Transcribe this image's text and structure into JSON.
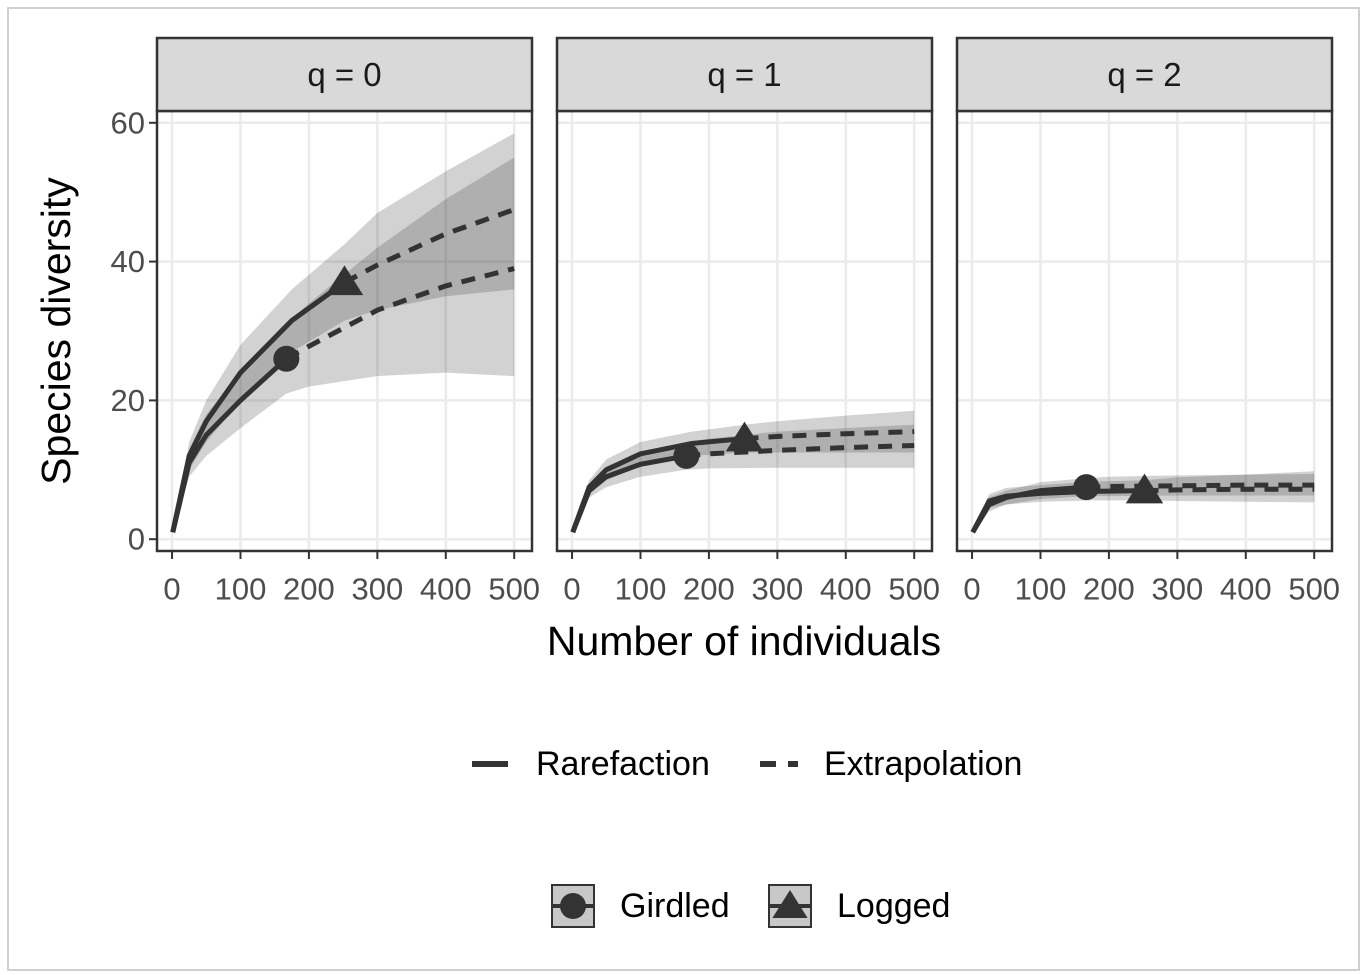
{
  "chart_data": {
    "type": "line",
    "xlabel": "Number of individuals",
    "ylabel": "Species diversity",
    "xlim": [
      -22,
      526
    ],
    "xticks": [
      0,
      100,
      200,
      300,
      400,
      500
    ],
    "ylim": [
      -1.7,
      61.7
    ],
    "yticks": [
      0,
      20,
      40,
      60
    ],
    "grid": true,
    "color": "#333333",
    "linetype_legend": [
      "Rarefaction",
      "Extrapolation"
    ],
    "groups": [
      {
        "name": "Girdled",
        "shape": "circle",
        "sample_size": 167
      },
      {
        "name": "Logged",
        "shape": "triangle",
        "sample_size": 252
      }
    ],
    "panels": [
      {
        "label": "q = 0",
        "series": [
          {
            "x": [
              1,
              25,
              50,
              100,
              167,
              200,
              300,
              400,
              500
            ],
            "values": [
              1,
              11,
              15,
              20,
              26,
              27.8,
              33,
              36.5,
              39
            ],
            "lower": [
              1,
              9,
              12,
              16,
              21,
              22,
              23.5,
              24,
              23.5
            ],
            "upper": [
              1,
              13,
              18,
              24,
              31,
              34,
              42,
              49,
              55
            ]
          },
          {
            "x": [
              1,
              25,
              50,
              100,
              175,
              252,
              300,
              400,
              500
            ],
            "values": [
              1,
              12,
              17,
              24,
              31.5,
              37,
              39.5,
              44,
              47.5
            ],
            "lower": [
              1,
              10,
              14,
              20,
              27,
              31.5,
              33,
              35,
              36
            ],
            "upper": [
              1,
              14,
              20,
              28,
              36,
              42.5,
              47,
              53,
              58.5
            ]
          }
        ]
      },
      {
        "label": "q = 1",
        "series": [
          {
            "x": [
              1,
              25,
              50,
              100,
              167,
              200,
              300,
              400,
              500
            ],
            "values": [
              1,
              7,
              9,
              10.8,
              12,
              12.3,
              12.8,
              13.2,
              13.5
            ],
            "lower": [
              1,
              6,
              7.5,
              9,
              10,
              10.2,
              10.3,
              10.3,
              10.3
            ],
            "upper": [
              1,
              8,
              10.5,
              12.5,
              14,
              14.5,
              15.5,
              16,
              16.5
            ]
          },
          {
            "x": [
              1,
              25,
              50,
              100,
              175,
              252,
              300,
              400,
              500
            ],
            "values": [
              1,
              7.5,
              10,
              12.3,
              13.8,
              14.5,
              14.8,
              15.2,
              15.5
            ],
            "lower": [
              1,
              6.5,
              8.5,
              10.5,
              12,
              12.5,
              12.5,
              12.5,
              12.5
            ],
            "upper": [
              1,
              8.5,
              11.5,
              14,
              15.5,
              16.5,
              17,
              17.8,
              18.5
            ]
          }
        ]
      },
      {
        "label": "q = 2",
        "series": [
          {
            "x": [
              1,
              25,
              50,
              100,
              167,
              200,
              300,
              400,
              500
            ],
            "values": [
              1,
              5,
              6,
              7,
              7.5,
              7.6,
              7.7,
              7.8,
              7.8
            ],
            "lower": [
              1,
              4,
              5,
              5.8,
              6.2,
              6.2,
              6.3,
              6.3,
              6.3
            ],
            "upper": [
              1,
              6,
              7,
              8.2,
              8.8,
              9,
              9.2,
              9.3,
              9.4
            ]
          },
          {
            "x": [
              1,
              25,
              50,
              100,
              175,
              252,
              300,
              400,
              500
            ],
            "values": [
              1,
              5.5,
              6.2,
              6.6,
              6.9,
              7,
              7.1,
              7.2,
              7.2
            ],
            "lower": [
              1,
              4.5,
              5,
              5.4,
              5.6,
              5.6,
              5.5,
              5.4,
              5.3
            ],
            "upper": [
              1,
              6.5,
              7.4,
              7.8,
              8.3,
              8.5,
              8.9,
              9.3,
              9.8
            ]
          }
        ]
      }
    ]
  }
}
